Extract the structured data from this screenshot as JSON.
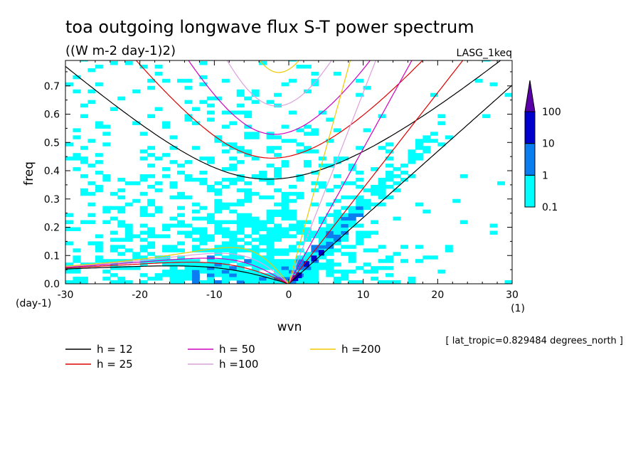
{
  "chart_data": {
    "type": "heatmap",
    "title": "toa outgoing longwave flux S-T power spectrum",
    "subtitle": "((W m-2 day-1)2)",
    "label_right": "LASG_1keq",
    "xlabel": "wvn",
    "ylabel": "freq",
    "x_unit": "(1)",
    "y_unit": "(day-1)",
    "xlim": [
      -30,
      30
    ],
    "ylim": [
      0.0,
      0.79
    ],
    "x_ticks": [
      "-30",
      "-20",
      "-10",
      "0",
      "10",
      "20",
      "30"
    ],
    "y_ticks": [
      "0.0",
      "0.1",
      "0.2",
      "0.3",
      "0.4",
      "0.5",
      "0.6",
      "0.7"
    ],
    "footnote": "[ lat_tropic=0.829484 degrees_north ]",
    "colorbar": {
      "levels": [
        "0.1",
        "1",
        "10",
        "100"
      ],
      "colors": [
        "#00ffff",
        "#0a7ef0",
        "#0000cd",
        "#5a00a8"
      ]
    },
    "dispersion_curves": [
      {
        "label": "h = 12",
        "h": 12,
        "color": "#000000"
      },
      {
        "label": "h = 25",
        "h": 25,
        "color": "#e00000"
      },
      {
        "label": "h = 50",
        "h": 50,
        "color": "#d000c0"
      },
      {
        "label": "h =100",
        "h": 100,
        "color": "#dda0dd"
      },
      {
        "label": "h =200",
        "h": 200,
        "color": "#f0c800"
      }
    ]
  }
}
